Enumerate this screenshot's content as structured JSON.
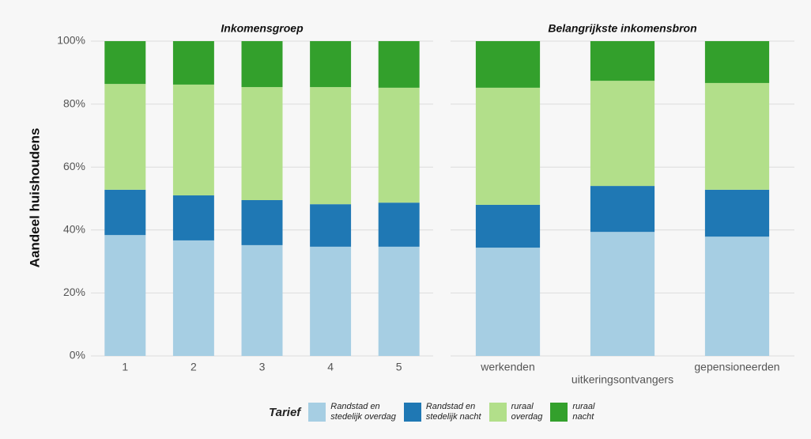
{
  "chart_data": {
    "type": "bar",
    "stacked": true,
    "ylabel": "Aandeel huishoudens",
    "legend_title": "Tarief",
    "ylim": [
      0,
      100
    ],
    "yticks": [
      {
        "value": 0,
        "label": "0%"
      },
      {
        "value": 20,
        "label": "20%"
      },
      {
        "value": 40,
        "label": "40%"
      },
      {
        "value": 60,
        "label": "60%"
      },
      {
        "value": 80,
        "label": "80%"
      },
      {
        "value": 100,
        "label": "100%"
      }
    ],
    "grid": true,
    "series": [
      {
        "name": "Randstad en\nstedelijk overdag",
        "color": "#a6cee3"
      },
      {
        "name": "Randstad en\nstedelijk nacht",
        "color": "#1f78b4"
      },
      {
        "name": "ruraal\noverdag",
        "color": "#b2df8a"
      },
      {
        "name": "ruraal\nnacht",
        "color": "#33a02c"
      }
    ],
    "panels": [
      {
        "title": "Inkomensgroep",
        "categories": [
          "1",
          "2",
          "3",
          "4",
          "5"
        ],
        "series_values": [
          [
            38.4,
            36.7,
            35.2,
            34.7,
            34.7
          ],
          [
            14.4,
            14.3,
            14.3,
            13.5,
            14.0
          ],
          [
            33.6,
            35.2,
            35.9,
            37.2,
            36.5
          ],
          [
            13.6,
            13.8,
            14.6,
            14.6,
            14.8
          ]
        ]
      },
      {
        "title": "Belangrijkste inkomensbron",
        "categories": [
          "werkenden",
          "uitkeringsontvangers",
          "gepensioneerden"
        ],
        "series_values": [
          [
            34.4,
            39.4,
            37.9
          ],
          [
            13.6,
            14.6,
            14.9
          ],
          [
            37.2,
            33.4,
            33.9
          ],
          [
            14.8,
            12.6,
            13.3
          ]
        ]
      }
    ]
  }
}
